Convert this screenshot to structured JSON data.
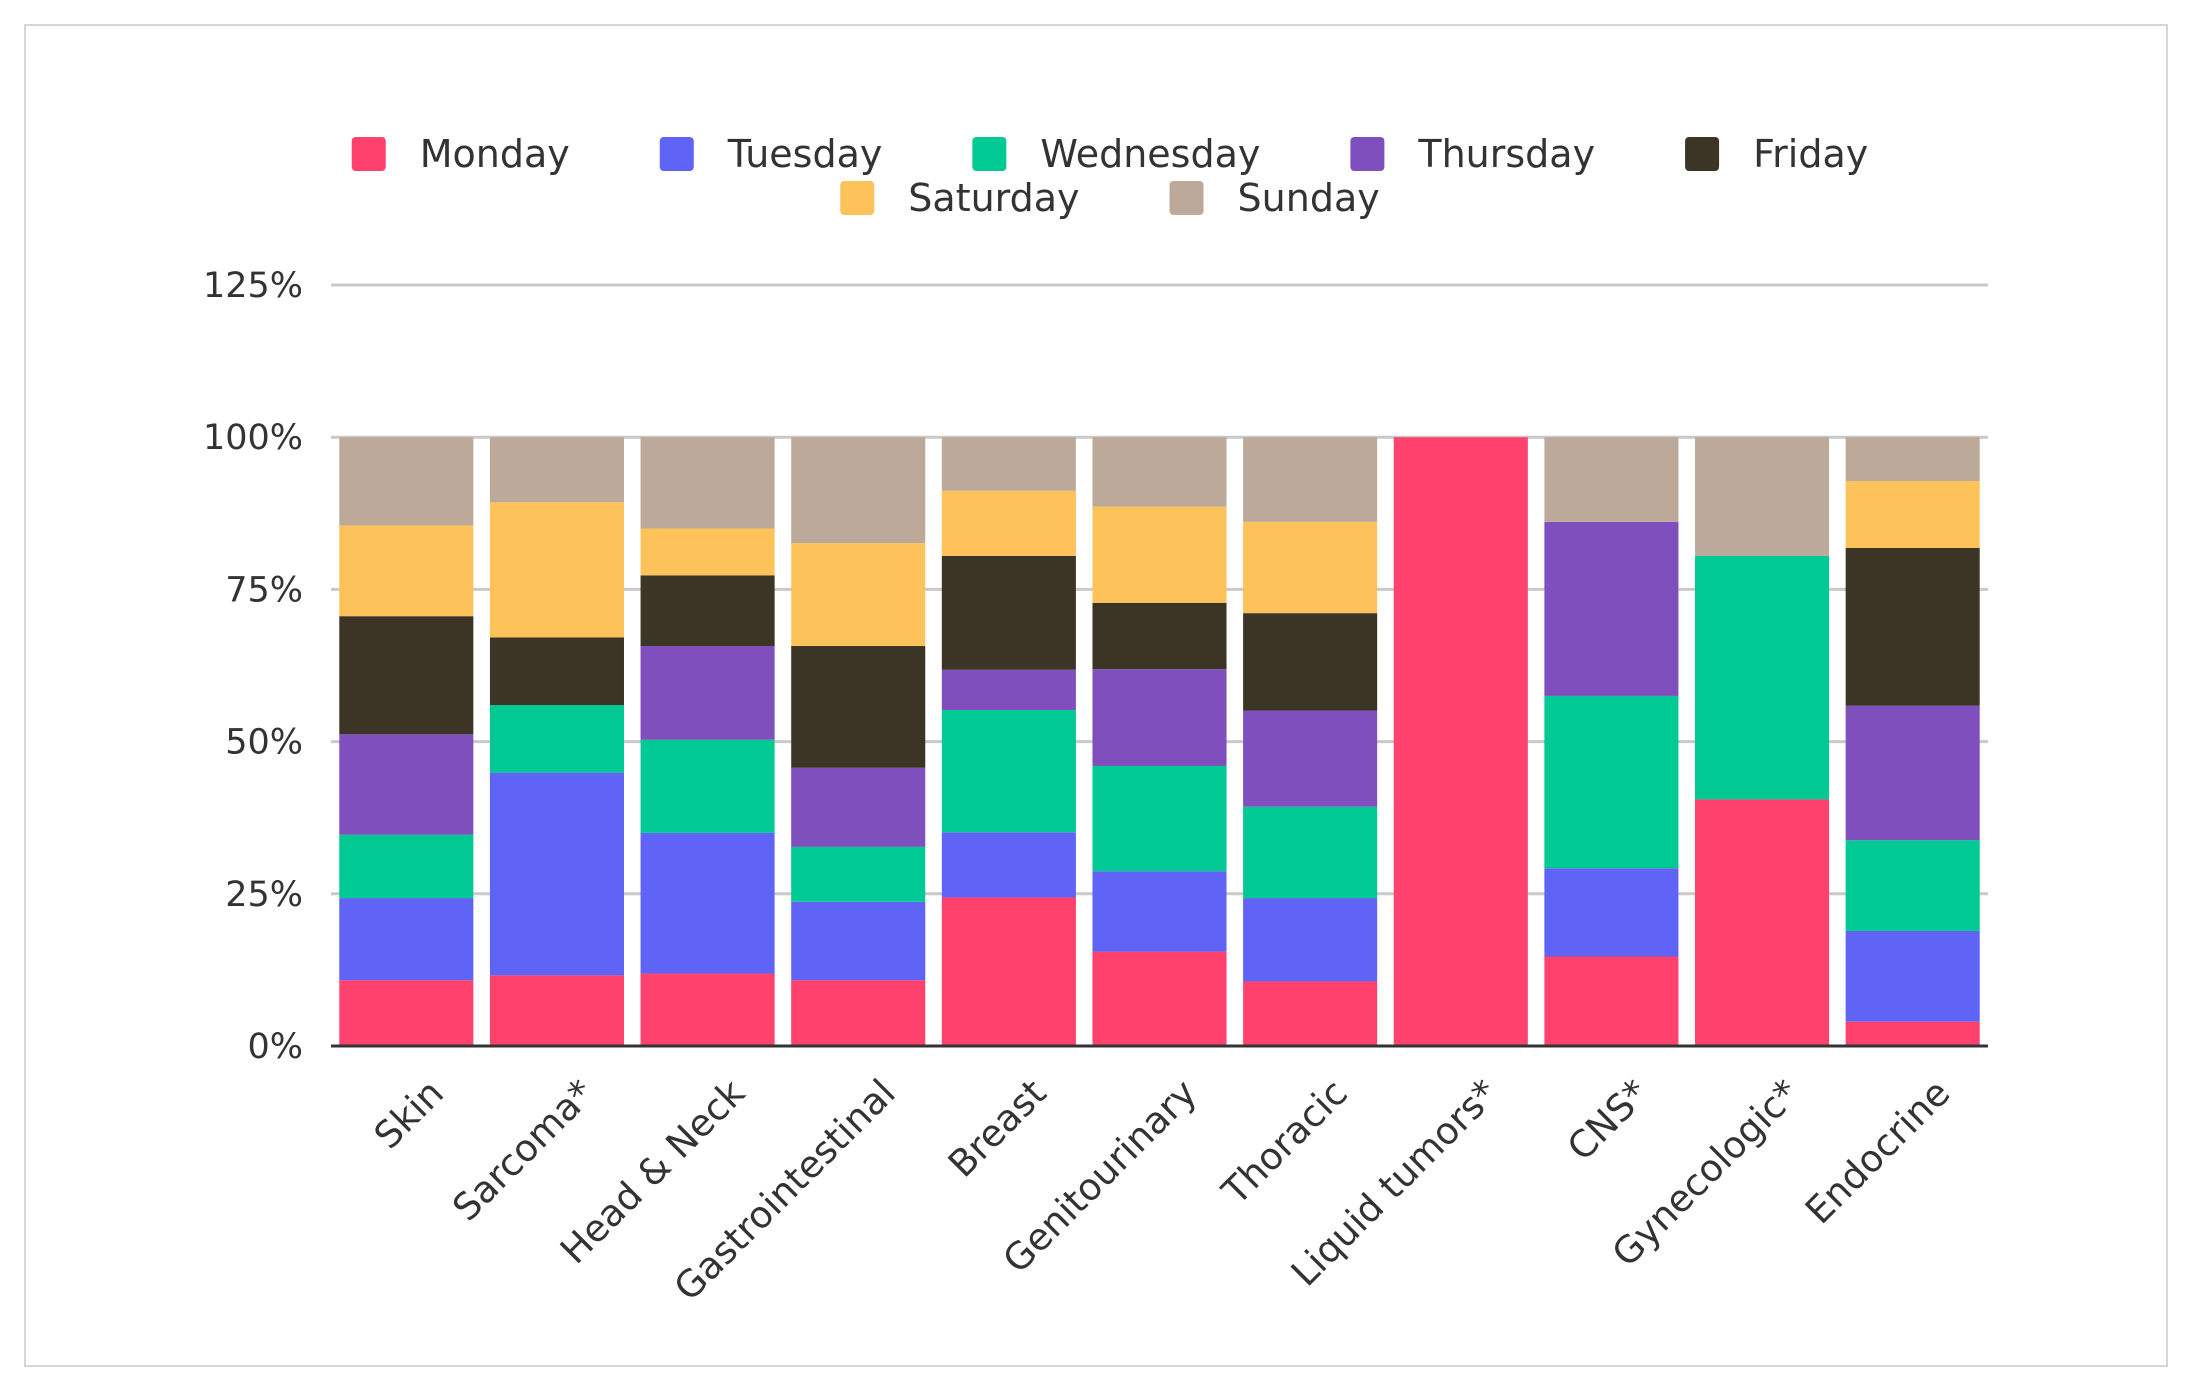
{
  "chart_data": {
    "type": "bar",
    "stacked": true,
    "categories": [
      "Skin",
      "Sarcoma*",
      "Head & Neck",
      "Gastrointestinal",
      "Breast",
      "Genitourinary",
      "Thoracic",
      "Liquid tumors*",
      "CNS*",
      "Gynecologic*",
      "Endocrine"
    ],
    "series": [
      {
        "name": "Monday",
        "color": "#ff416d",
        "values": [
          10.8,
          11.6,
          11.9,
          10.8,
          24.4,
          15.5,
          10.6,
          100.0,
          14.7,
          40.5,
          4.0
        ]
      },
      {
        "name": "Tuesday",
        "color": "#5f63f6",
        "values": [
          13.5,
          33.3,
          23.1,
          12.9,
          10.7,
          13.2,
          13.7,
          0,
          14.5,
          0,
          14.9
        ]
      },
      {
        "name": "Wednesday",
        "color": "#00c994",
        "values": [
          10.4,
          11.1,
          15.3,
          9.0,
          20.1,
          17.3,
          15.0,
          0,
          28.3,
          40.0,
          14.9
        ]
      },
      {
        "name": "Thursday",
        "color": "#7f4fbd",
        "values": [
          16.5,
          0,
          15.4,
          13.0,
          6.6,
          15.9,
          15.8,
          0,
          28.6,
          0,
          22.1
        ]
      },
      {
        "name": "Friday",
        "color": "#3c3526",
        "values": [
          19.4,
          11.1,
          11.6,
          20.0,
          18.7,
          10.9,
          16.0,
          0,
          0,
          0,
          25.9
        ]
      },
      {
        "name": "Saturday",
        "color": "#fec25a",
        "values": [
          14.9,
          22.2,
          7.7,
          16.9,
          10.7,
          15.8,
          15.0,
          0,
          0,
          0,
          11.0
        ]
      },
      {
        "name": "Sunday",
        "color": "#bda999",
        "values": [
          14.5,
          10.7,
          15.0,
          17.4,
          8.8,
          11.4,
          13.9,
          0,
          13.9,
          19.5,
          7.2
        ]
      }
    ],
    "yticks": [
      "0%",
      "25%",
      "50%",
      "75%",
      "100%",
      "125%"
    ],
    "ylim": [
      0,
      125
    ],
    "grid": true,
    "legend_position": "top",
    "title": "",
    "xlabel": "",
    "ylabel": ""
  }
}
